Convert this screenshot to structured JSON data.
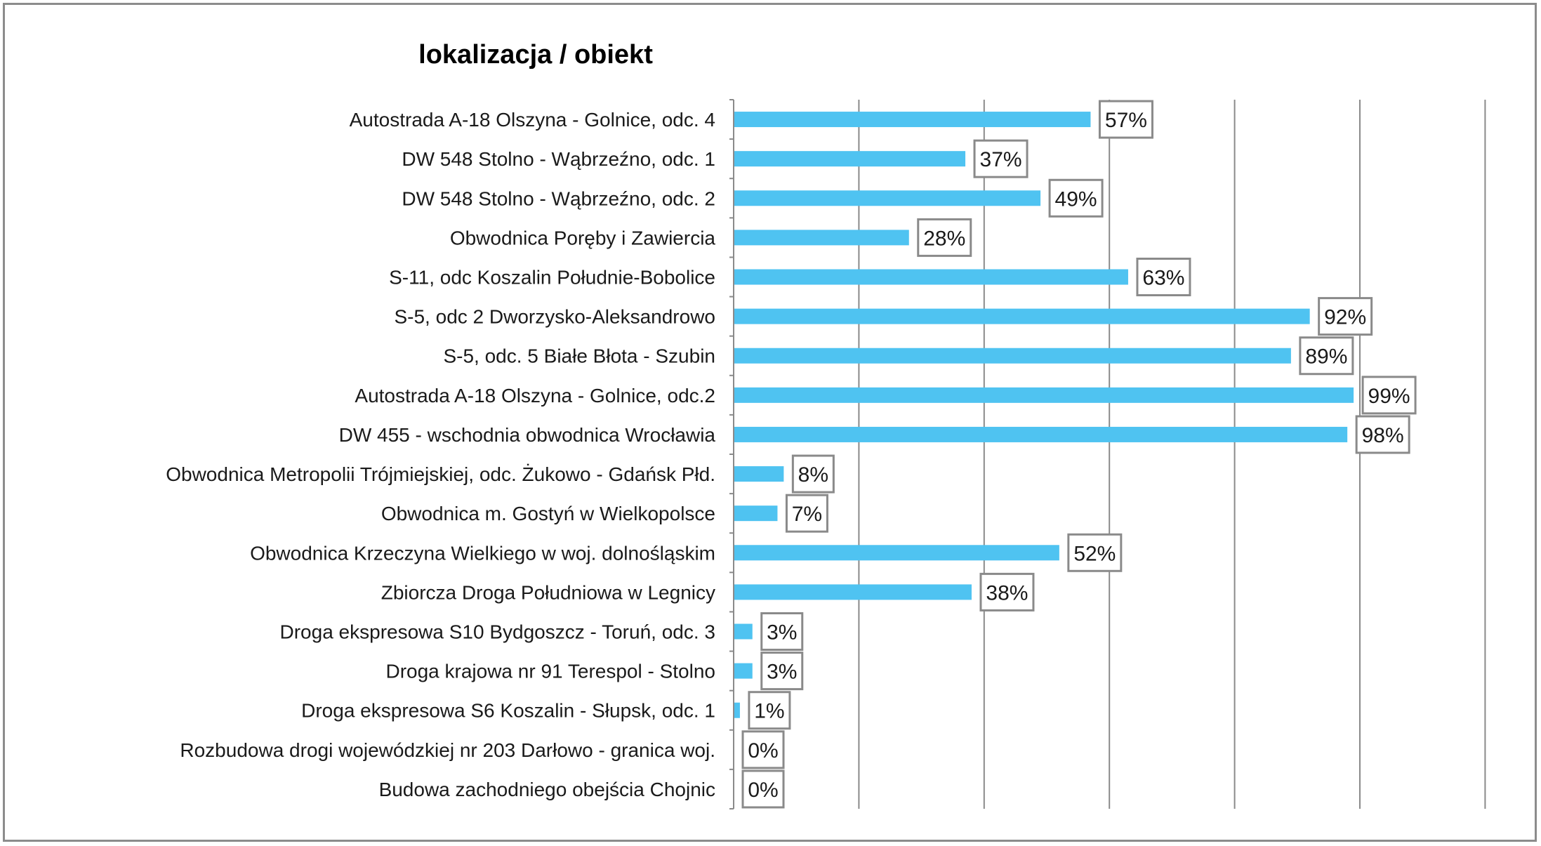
{
  "chart_data": {
    "type": "bar",
    "orientation": "horizontal",
    "title": "lokalizacja / obiekt",
    "xlabel": "",
    "ylabel": "",
    "xlim": [
      0,
      120
    ],
    "grid": true,
    "legend": "none",
    "value_format": "percent",
    "bar_color": "#4fc3f1",
    "categories": [
      "Autostrada A-18 Olszyna - Golnice, odc. 4",
      "DW 548 Stolno - Wąbrzeźno, odc. 1",
      "DW 548 Stolno - Wąbrzeźno, odc. 2",
      "Obwodnica Poręby i Zawiercia",
      "S-11, odc Koszalin Południe-Bobolice",
      "S-5, odc 2 Dworzysko-Aleksandrowo",
      "S-5, odc. 5 Białe Błota - Szubin",
      "Autostrada A-18 Olszyna - Golnice, odc.2",
      "DW 455 - wschodnia obwodnica Wrocławia",
      "Obwodnica Metropolii Trójmiejskiej, odc. Żukowo - Gdańsk Płd.",
      "Obwodnica m. Gostyń w Wielkopolsce",
      "Obwodnica  Krzeczyna Wielkiego w woj. dolnośląskim",
      "Zbiorcza Droga Południowa w Legnicy",
      "Droga ekspresowa S10 Bydgoszcz - Toruń, odc. 3",
      "Droga krajowa nr 91 Terespol - Stolno",
      "Droga ekspresowa S6 Koszalin - Słupsk, odc. 1",
      "Rozbudowa drogi wojewódzkiej nr 203 Darłowo - granica woj.",
      "Budowa zachodniego obejścia Chojnic"
    ],
    "values": [
      57,
      37,
      49,
      28,
      63,
      92,
      89,
      99,
      98,
      8,
      7,
      52,
      38,
      3,
      3,
      1,
      0,
      0
    ],
    "data_labels": [
      "57%",
      "37%",
      "49%",
      "28%",
      "63%",
      "92%",
      "89%",
      "99%",
      "98%",
      "8%",
      "7%",
      "52%",
      "38%",
      "3%",
      "3%",
      "1%",
      "0%",
      "0%"
    ]
  }
}
